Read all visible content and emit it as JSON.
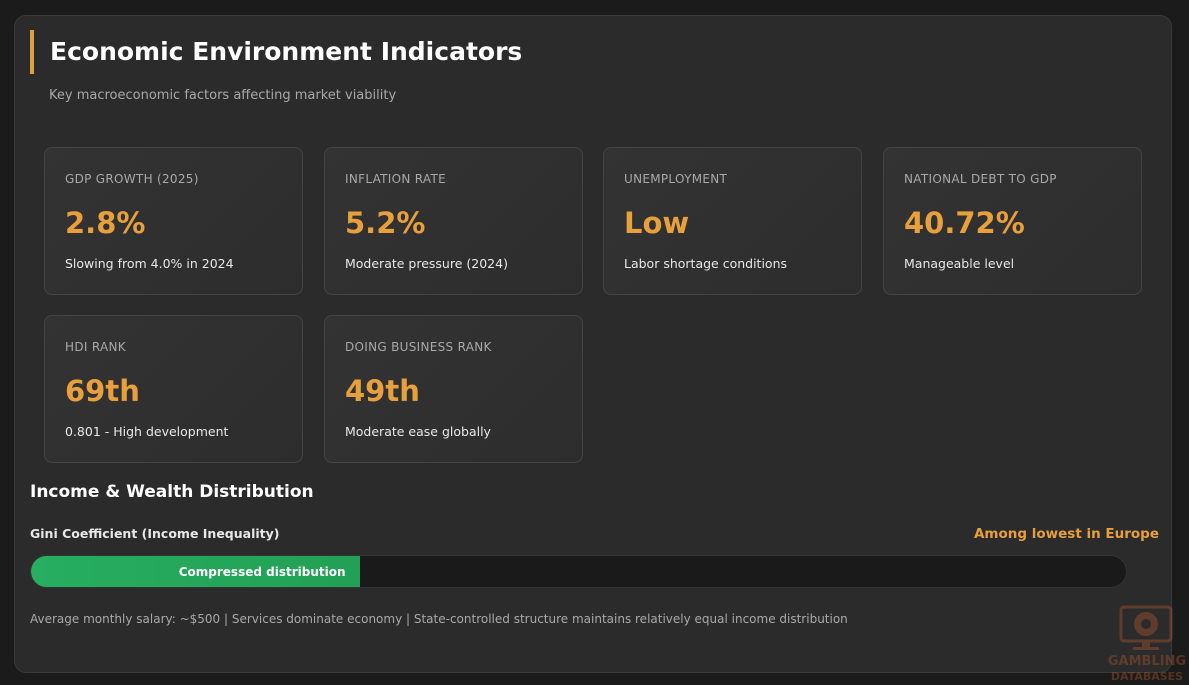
{
  "header": {
    "title": "Economic Environment Indicators",
    "subtitle": "Key macroeconomic factors affecting market viability"
  },
  "cards": [
    {
      "label": "GDP GROWTH (2025)",
      "value": "2.8%",
      "desc": "Slowing from 4.0% in 2024"
    },
    {
      "label": "INFLATION RATE",
      "value": "5.2%",
      "desc": "Moderate pressure (2024)"
    },
    {
      "label": "UNEMPLOYMENT",
      "value": "Low",
      "desc": "Labor shortage conditions"
    },
    {
      "label": "NATIONAL DEBT TO GDP",
      "value": "40.72%",
      "desc": "Manageable level"
    },
    {
      "label": "HDI RANK",
      "value": "69th",
      "desc": "0.801 - High development"
    },
    {
      "label": "DOING BUSINESS RANK",
      "value": "49th",
      "desc": "Moderate ease globally"
    }
  ],
  "income": {
    "title": "Income & Wealth Distribution",
    "gini_label": "Gini Coefficient (Income Inequality)",
    "gini_note": "Among lowest in Europe",
    "bar_label": "Compressed distribution",
    "bar_fill_percent": 30,
    "footnote": "Average monthly salary: ~$500 | Services dominate economy | State-controlled structure maintains relatively equal income distribution"
  },
  "colors": {
    "accent": "#e8a03c",
    "bar_fill": "#27ae60"
  },
  "watermark": "GAMBLING DATABASES"
}
